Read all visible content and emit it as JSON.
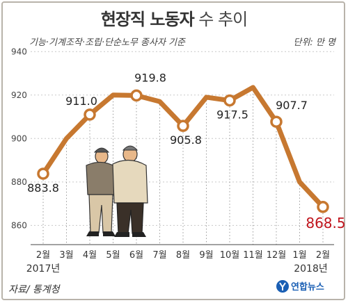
{
  "title": {
    "main": "현장직 노동자",
    "suffix": " 수 추이"
  },
  "subtitle": "기능·기계조작·조립·단순노무 종사자 기준",
  "unit": "단위: 만 명",
  "source": "자료/ 통계청",
  "logo_text": "연합뉴스",
  "colors": {
    "line": "#c77830",
    "marker_fill": "#ffffff",
    "highlight": "#c0141c",
    "grid": "#c8c8c8"
  },
  "chart_data": {
    "type": "line",
    "categories": [
      "2월",
      "3월",
      "4월",
      "5월",
      "6월",
      "7월",
      "8월",
      "9월",
      "10월",
      "11월",
      "12월",
      "1월",
      "2월"
    ],
    "years": [
      {
        "label": "2017년",
        "at_index": 0
      },
      {
        "label": "2018년",
        "at_index": 11
      }
    ],
    "values": [
      883.8,
      900.0,
      911.0,
      920.0,
      919.8,
      917.0,
      905.8,
      919.0,
      917.5,
      923.5,
      907.7,
      880.0,
      868.5
    ],
    "data_labels": [
      "883.8",
      null,
      "911.0",
      null,
      "919.8",
      null,
      "905.8",
      null,
      "917.5",
      null,
      "907.7",
      null,
      "868.5"
    ],
    "yticks": [
      860,
      880,
      900,
      920,
      940
    ],
    "ylim": [
      855,
      942
    ],
    "grid": true,
    "title": "현장직 노동자 수 추이",
    "ylabel": "",
    "xlabel": ""
  }
}
